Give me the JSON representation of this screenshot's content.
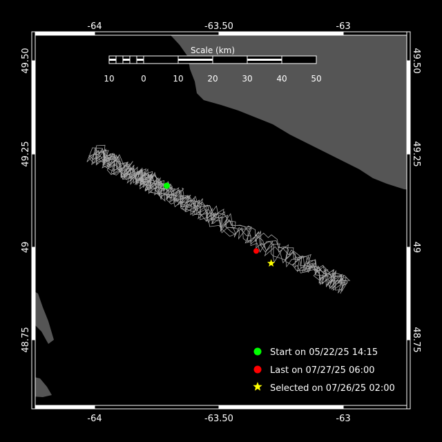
{
  "map": {
    "colors": {
      "background": "#000000",
      "land": "#555555",
      "frame": "#ffffff",
      "track": "#a8a8a8"
    },
    "lon_ticks": [
      "-64",
      "-63.50",
      "-63"
    ],
    "lat_ticks": [
      "49.50",
      "49.25",
      "49",
      "48.75"
    ],
    "lon_values": [
      -64,
      -63.5,
      -63
    ],
    "lat_values": [
      49.5,
      49.25,
      49,
      48.75
    ],
    "scale": {
      "title": "Scale (km)",
      "labels": [
        "10",
        "0",
        "10",
        "20",
        "30",
        "40",
        "50"
      ]
    },
    "markers": {
      "start": {
        "lon": -63.71,
        "lat": 49.165,
        "color": "#00ff00",
        "icon": "circle"
      },
      "last": {
        "lon": -63.35,
        "lat": 48.99,
        "color": "#ff0000",
        "icon": "circle"
      },
      "selected": {
        "lon": -63.29,
        "lat": 48.957,
        "color": "#ffff00",
        "icon": "star"
      }
    },
    "legend": {
      "start": "Start on 05/22/25 14:15",
      "last": "Last on 07/27/25 06:00",
      "selected": "Selected on 07/26/25 02:00"
    }
  }
}
